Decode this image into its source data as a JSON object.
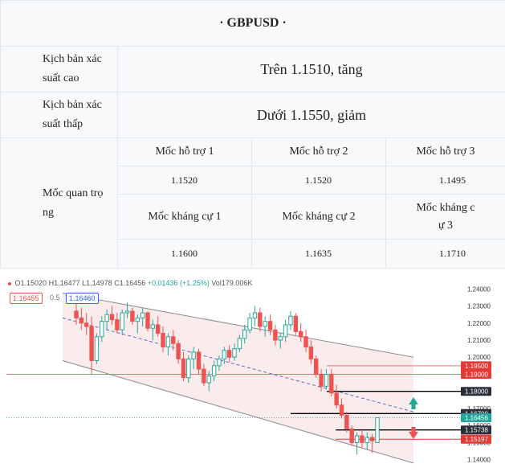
{
  "header": {
    "title": "· GBPUSD ·"
  },
  "scenarios": [
    {
      "label": "Kịch bản xác suất cao",
      "label_l1": "Kịch bản xác",
      "label_l2": "suất cao",
      "value": "Trên 1.1510, tăng"
    },
    {
      "label": "Kịch bản xác suất thấp",
      "label_l1": "Kịch bản xác",
      "label_l2": "suất thấp",
      "value": "Dưới 1.1550, giảm"
    }
  ],
  "key_levels": {
    "label_l1": "Mốc quan trọ",
    "label_l2": "ng",
    "support_headers": [
      "Mốc hỗ trợ 1",
      "Mốc hỗ trợ 2",
      "Mốc hỗ trợ 3"
    ],
    "support_values": [
      "1.1520",
      "1.1520",
      "1.1495"
    ],
    "resistance_headers": [
      "Mốc kháng cự 1",
      "Mốc kháng cự 2"
    ],
    "resistance3_l1": "Mốc kháng c",
    "resistance3_l2": "ự 3",
    "resistance_values": [
      "1.1600",
      "1.1635",
      "1.1710"
    ]
  },
  "chart": {
    "ohlc": {
      "o": "O1.15020",
      "h": "H1.16477",
      "l": "L1.14978",
      "c": "C1.16456",
      "chg": "+0.01436 (+1.25%)",
      "vol": "Vol179.006K"
    },
    "sell_price": "1.16455",
    "spread": "0.5",
    "buy_price": "1.16460",
    "colors": {
      "up": "#26a69a",
      "down": "#ef5350",
      "channel": "#f6dcdc",
      "trend": "#5c6bc0",
      "tag_red": "#e53935",
      "tag_dark": "#2a2e39",
      "tag_green": "#26a69a"
    }
  },
  "chart_data": {
    "type": "candlestick",
    "title": "",
    "y_ticks": [
      "1.24000",
      "1.23000",
      "1.22000",
      "1.21000",
      "1.20000",
      "1.19000",
      "1.18000",
      "1.17000",
      "1.16000",
      "1.15000",
      "1.14000"
    ],
    "ylim": [
      1.137,
      1.2425
    ],
    "price_tags": [
      {
        "label": "1.19500",
        "value": 1.195,
        "style": "red"
      },
      {
        "label": "1.19000",
        "value": 1.19,
        "style": "red"
      },
      {
        "label": "1.18000",
        "value": 1.18,
        "style": "dark"
      },
      {
        "label": "1.16700",
        "value": 1.167,
        "style": "dark"
      },
      {
        "label": "1.16456",
        "value": 1.16456,
        "style": "green"
      },
      {
        "label": "1.15738",
        "value": 1.15738,
        "style": "dark"
      },
      {
        "label": "1.15197",
        "value": 1.15197,
        "style": "red"
      }
    ],
    "horizontal_levels": [
      {
        "value": 1.18,
        "x0": 0.71,
        "color": "#000000"
      },
      {
        "value": 1.167,
        "x0": 0.63,
        "color": "#000000"
      },
      {
        "value": 1.15738,
        "x0": 0.73,
        "color": "#000000"
      },
      {
        "value": 1.15197,
        "x0": 0.73,
        "color": "#e53935"
      },
      {
        "value": 1.19,
        "x0": 0.0,
        "color": "#e57373"
      },
      {
        "value": 1.195,
        "x0": 0.71,
        "color": "#e57373"
      }
    ],
    "candles": [
      [
        1.227,
        1.233,
        1.219,
        1.223
      ],
      [
        1.223,
        1.229,
        1.216,
        1.22
      ],
      [
        1.22,
        1.226,
        1.213,
        1.218
      ],
      [
        1.218,
        1.224,
        1.19,
        1.198
      ],
      [
        1.198,
        1.214,
        1.196,
        1.212
      ],
      [
        1.212,
        1.224,
        1.209,
        1.221
      ],
      [
        1.221,
        1.228,
        1.216,
        1.225
      ],
      [
        1.225,
        1.23,
        1.219,
        1.222
      ],
      [
        1.222,
        1.226,
        1.214,
        1.216
      ],
      [
        1.216,
        1.228,
        1.213,
        1.226
      ],
      [
        1.226,
        1.232,
        1.223,
        1.227
      ],
      [
        1.227,
        1.229,
        1.219,
        1.221
      ],
      [
        1.221,
        1.225,
        1.214,
        1.223
      ],
      [
        1.223,
        1.229,
        1.218,
        1.226
      ],
      [
        1.226,
        1.227,
        1.215,
        1.217
      ],
      [
        1.217,
        1.222,
        1.21,
        1.219
      ],
      [
        1.219,
        1.224,
        1.212,
        1.214
      ],
      [
        1.214,
        1.218,
        1.203,
        1.206
      ],
      [
        1.206,
        1.214,
        1.201,
        1.212
      ],
      [
        1.212,
        1.216,
        1.204,
        1.208
      ],
      [
        1.208,
        1.21,
        1.196,
        1.199
      ],
      [
        1.199,
        1.203,
        1.186,
        1.188
      ],
      [
        1.188,
        1.201,
        1.185,
        1.199
      ],
      [
        1.199,
        1.206,
        1.193,
        1.203
      ],
      [
        1.203,
        1.205,
        1.19,
        1.193
      ],
      [
        1.193,
        1.196,
        1.183,
        1.185
      ],
      [
        1.185,
        1.192,
        1.18,
        1.189
      ],
      [
        1.189,
        1.198,
        1.186,
        1.195
      ],
      [
        1.195,
        1.201,
        1.192,
        1.199
      ],
      [
        1.199,
        1.206,
        1.196,
        1.204
      ],
      [
        1.204,
        1.207,
        1.197,
        1.2
      ],
      [
        1.2,
        1.208,
        1.198,
        1.205
      ],
      [
        1.205,
        1.213,
        1.203,
        1.211
      ],
      [
        1.211,
        1.219,
        1.208,
        1.216
      ],
      [
        1.216,
        1.226,
        1.214,
        1.223
      ],
      [
        1.223,
        1.23,
        1.218,
        1.226
      ],
      [
        1.226,
        1.229,
        1.215,
        1.218
      ],
      [
        1.218,
        1.224,
        1.212,
        1.221
      ],
      [
        1.221,
        1.225,
        1.213,
        1.216
      ],
      [
        1.216,
        1.219,
        1.207,
        1.21
      ],
      [
        1.21,
        1.214,
        1.205,
        1.212
      ],
      [
        1.212,
        1.222,
        1.209,
        1.219
      ],
      [
        1.219,
        1.227,
        1.216,
        1.224
      ],
      [
        1.224,
        1.226,
        1.213,
        1.215
      ],
      [
        1.215,
        1.22,
        1.209,
        1.212
      ],
      [
        1.212,
        1.216,
        1.203,
        1.206
      ],
      [
        1.206,
        1.21,
        1.196,
        1.199
      ],
      [
        1.199,
        1.201,
        1.188,
        1.19
      ],
      [
        1.19,
        1.193,
        1.18,
        1.183
      ],
      [
        1.183,
        1.193,
        1.181,
        1.19
      ],
      [
        1.19,
        1.193,
        1.177,
        1.179
      ],
      [
        1.179,
        1.184,
        1.17,
        1.172
      ],
      [
        1.172,
        1.176,
        1.164,
        1.166
      ],
      [
        1.166,
        1.168,
        1.156,
        1.158
      ],
      [
        1.158,
        1.16,
        1.148,
        1.15
      ],
      [
        1.15,
        1.156,
        1.143,
        1.154
      ],
      [
        1.154,
        1.158,
        1.147,
        1.15
      ],
      [
        1.15,
        1.156,
        1.146,
        1.153
      ],
      [
        1.153,
        1.155,
        1.144,
        1.151
      ],
      [
        1.15,
        1.1648,
        1.1498,
        1.1646
      ]
    ]
  }
}
